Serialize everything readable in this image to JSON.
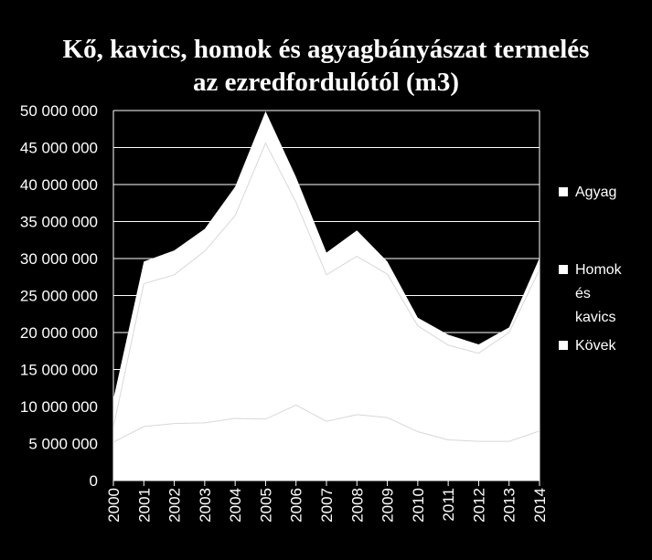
{
  "chart_data": {
    "type": "area",
    "stacked": true,
    "title_lines": [
      "Kő, kavics, homok és agyagbányászat termelés",
      "az ezredfordulótól (m3)"
    ],
    "x": [
      "2000",
      "2001",
      "2002",
      "2003",
      "2004",
      "2005",
      "2006",
      "2007",
      "2008",
      "2009",
      "2010",
      "2011",
      "2012",
      "2013",
      "2014"
    ],
    "series": [
      {
        "name": "Kövek",
        "values": [
          5200000,
          7300000,
          7700000,
          7800000,
          8400000,
          8300000,
          10200000,
          8000000,
          8900000,
          8500000,
          6600000,
          5500000,
          5300000,
          5300000,
          6700000
        ]
      },
      {
        "name": "Homok és kavics",
        "values": [
          2000000,
          19300000,
          20100000,
          23200000,
          27400000,
          37300000,
          27400000,
          19800000,
          21400000,
          19400000,
          14300000,
          12800000,
          11900000,
          14700000,
          21800000
        ]
      },
      {
        "name": "Agyag",
        "values": [
          3800000,
          3000000,
          3300000,
          3000000,
          3900000,
          4300000,
          3400000,
          3000000,
          3500000,
          1700000,
          1100000,
          1400000,
          1200000,
          700000,
          1600000
        ]
      }
    ],
    "ylim": [
      0,
      50000000
    ],
    "yticks": [
      "0",
      "5 000 000",
      "10 000 000",
      "15 000 000",
      "20 000 000",
      "25 000 000",
      "30 000 000",
      "35 000 000",
      "40 000 000",
      "45 000 000",
      "50 000 000"
    ],
    "grid": true,
    "legend_position": "right",
    "legend": [
      {
        "label_lines": [
          "Agyag"
        ]
      },
      {
        "label_lines": [
          "Homok",
          "és",
          "kavics"
        ]
      },
      {
        "label_lines": [
          "Kövek"
        ]
      }
    ],
    "colors": {
      "background": "#000000",
      "fill": "#ffffff",
      "text": "#ffffff",
      "grid": "#ffffff"
    }
  }
}
